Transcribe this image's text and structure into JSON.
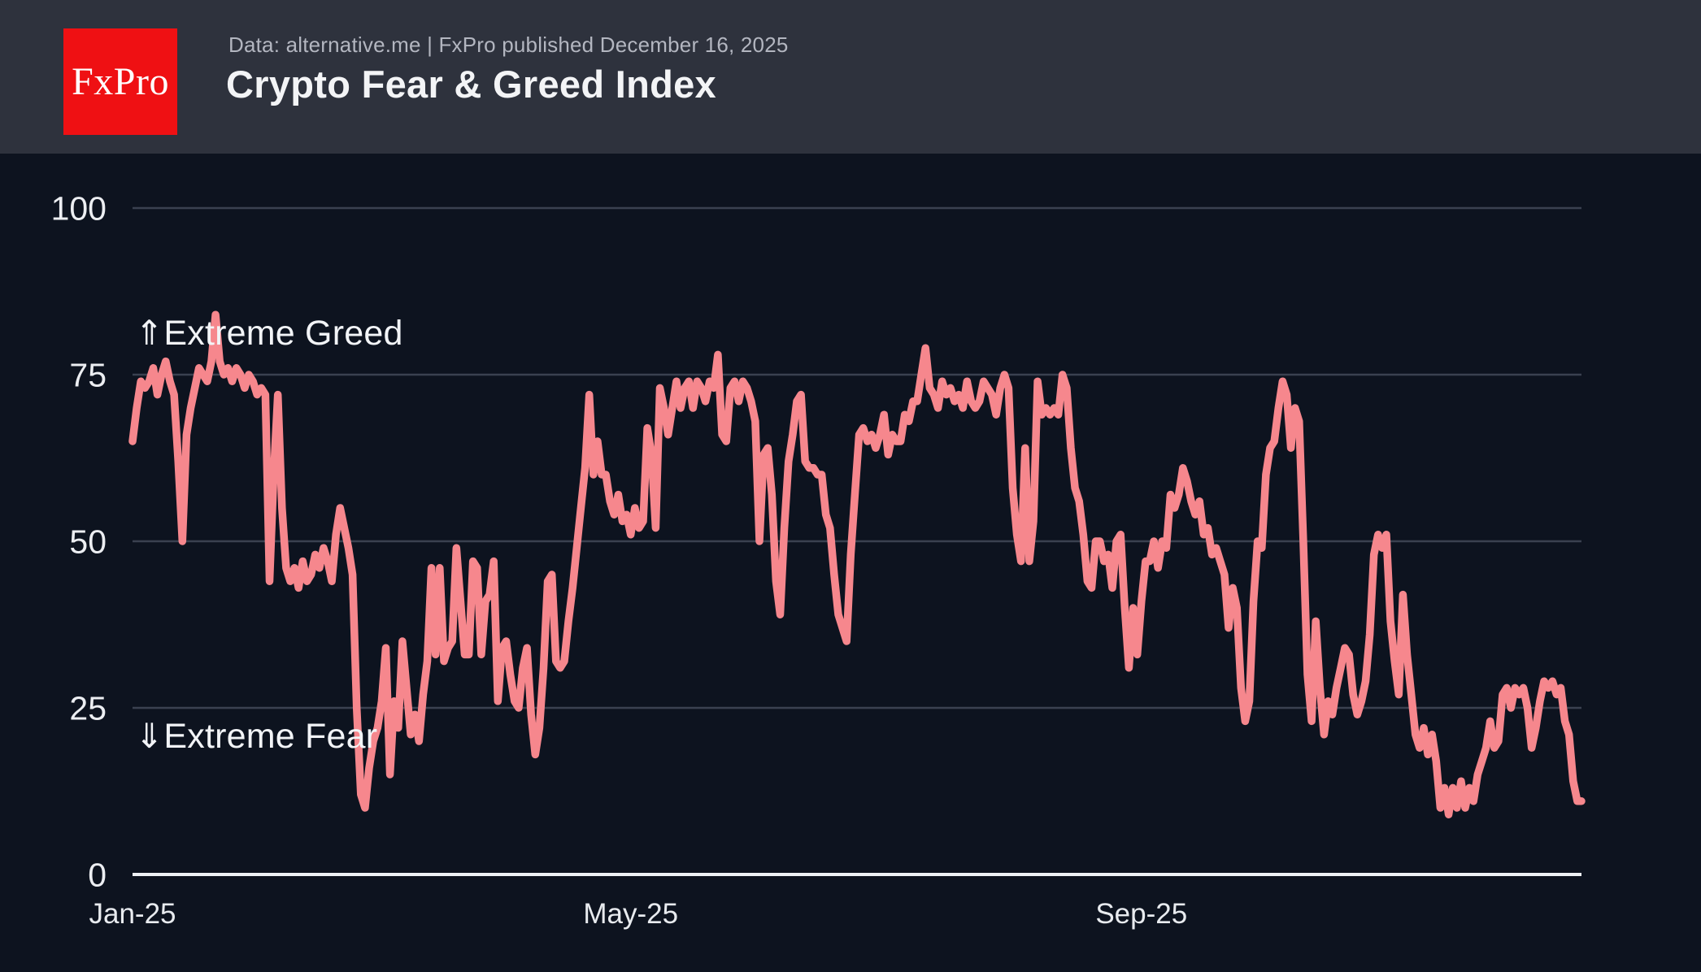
{
  "header": {
    "logo_text": "FxPro",
    "subtitle": "Data: alternative.me | FxPro published December 16, 2025",
    "title": "Crypto Fear & Greed Index"
  },
  "chart_data": {
    "type": "line",
    "title": "Crypto Fear & Greed Index",
    "xlabel": "",
    "ylabel": "",
    "ylim": [
      0,
      100
    ],
    "grid": "horizontal",
    "legend": "none",
    "y_ticks": [
      0,
      25,
      50,
      75,
      100
    ],
    "x_tick_labels": [
      "Jan-25",
      "May-25",
      "Sep-25"
    ],
    "x_tick_day_indices": [
      0,
      120,
      243
    ],
    "x_start_date": "2025-01-01",
    "x_end_date": "2025-12-16",
    "annotations": [
      {
        "arrow": "⇑",
        "text": "Extreme Greed"
      },
      {
        "arrow": "⇓",
        "text": "Extreme Fear"
      }
    ],
    "series": [
      {
        "name": "Fear & Greed Index (daily, Jan 1 - Dec 16, 2025)",
        "values": [
          65,
          70,
          74,
          73,
          74,
          76,
          72,
          75,
          77,
          74,
          72,
          62,
          50,
          66,
          70,
          73,
          76,
          75,
          74,
          77,
          84,
          77,
          75,
          76,
          74,
          76,
          75,
          73,
          75,
          74,
          72,
          73,
          72,
          44,
          60,
          72,
          55,
          46,
          44,
          46,
          43,
          47,
          44,
          45,
          48,
          46,
          49,
          47,
          44,
          51,
          55,
          52,
          49,
          45,
          25,
          12,
          10,
          16,
          20,
          22,
          26,
          34,
          15,
          26,
          22,
          35,
          28,
          21,
          24,
          20,
          27,
          32,
          46,
          33,
          46,
          32,
          34,
          35,
          49,
          41,
          33,
          33,
          47,
          46,
          33,
          41,
          42,
          47,
          26,
          34,
          35,
          30,
          26,
          25,
          31,
          34,
          24,
          18,
          22,
          31,
          44,
          45,
          32,
          31,
          32,
          38,
          43,
          49,
          55,
          61,
          72,
          60,
          65,
          60,
          60,
          56,
          54,
          57,
          53,
          54,
          51,
          55,
          52,
          53,
          67,
          63,
          52,
          73,
          70,
          66,
          70,
          74,
          70,
          73,
          74,
          70,
          74,
          73,
          71,
          74,
          73,
          78,
          66,
          65,
          73,
          74,
          71,
          74,
          73,
          71,
          68,
          50,
          63,
          64,
          57,
          44,
          39,
          52,
          62,
          66,
          71,
          72,
          62,
          61,
          61,
          60,
          60,
          54,
          52,
          45,
          39,
          37,
          35,
          48,
          57,
          66,
          67,
          65,
          66,
          64,
          66,
          69,
          63,
          66,
          65,
          65,
          69,
          68,
          71,
          71,
          75,
          79,
          73,
          72,
          70,
          74,
          72,
          73,
          71,
          72,
          70,
          74,
          71,
          70,
          71,
          74,
          73,
          72,
          69,
          73,
          75,
          73,
          58,
          51,
          47,
          64,
          47,
          53,
          74,
          69,
          70,
          69,
          70,
          69,
          75,
          73,
          64,
          58,
          56,
          51,
          44,
          43,
          50,
          50,
          47,
          48,
          43,
          50,
          51,
          40,
          31,
          40,
          33,
          41,
          47,
          47,
          50,
          46,
          50,
          49,
          57,
          55,
          57,
          61,
          59,
          56,
          54,
          56,
          51,
          52,
          48,
          49,
          47,
          45,
          37,
          43,
          40,
          28,
          23,
          26,
          41,
          50,
          49,
          60,
          64,
          65,
          70,
          74,
          72,
          64,
          70,
          68,
          50,
          30,
          23,
          38,
          28,
          21,
          26,
          24,
          28,
          31,
          34,
          33,
          27,
          24,
          26,
          29,
          36,
          48,
          51,
          49,
          51,
          38,
          32,
          27,
          42,
          33,
          27,
          21,
          19,
          22,
          18,
          21,
          17,
          10,
          13,
          9,
          13,
          10,
          14,
          10,
          13,
          11,
          15,
          17,
          19,
          23,
          19,
          20,
          27,
          28,
          25,
          28,
          27,
          28,
          25,
          19,
          22,
          26,
          29,
          28,
          29,
          27,
          28,
          23,
          21,
          14,
          11,
          11
        ]
      }
    ]
  },
  "style": {
    "background": "#0d131f",
    "header_background": "#2e323d",
    "logo_red": "#ef1013",
    "line": "#f6878d",
    "grid_line": "#3a4150",
    "axis_line": "#eef1f5",
    "y_tick_label": "#eceef2",
    "x_tick_label": "#e8ebef",
    "annotation": "#f2f4f7",
    "subtitle": "#b3b6c0",
    "title": "#f3f4f6"
  }
}
